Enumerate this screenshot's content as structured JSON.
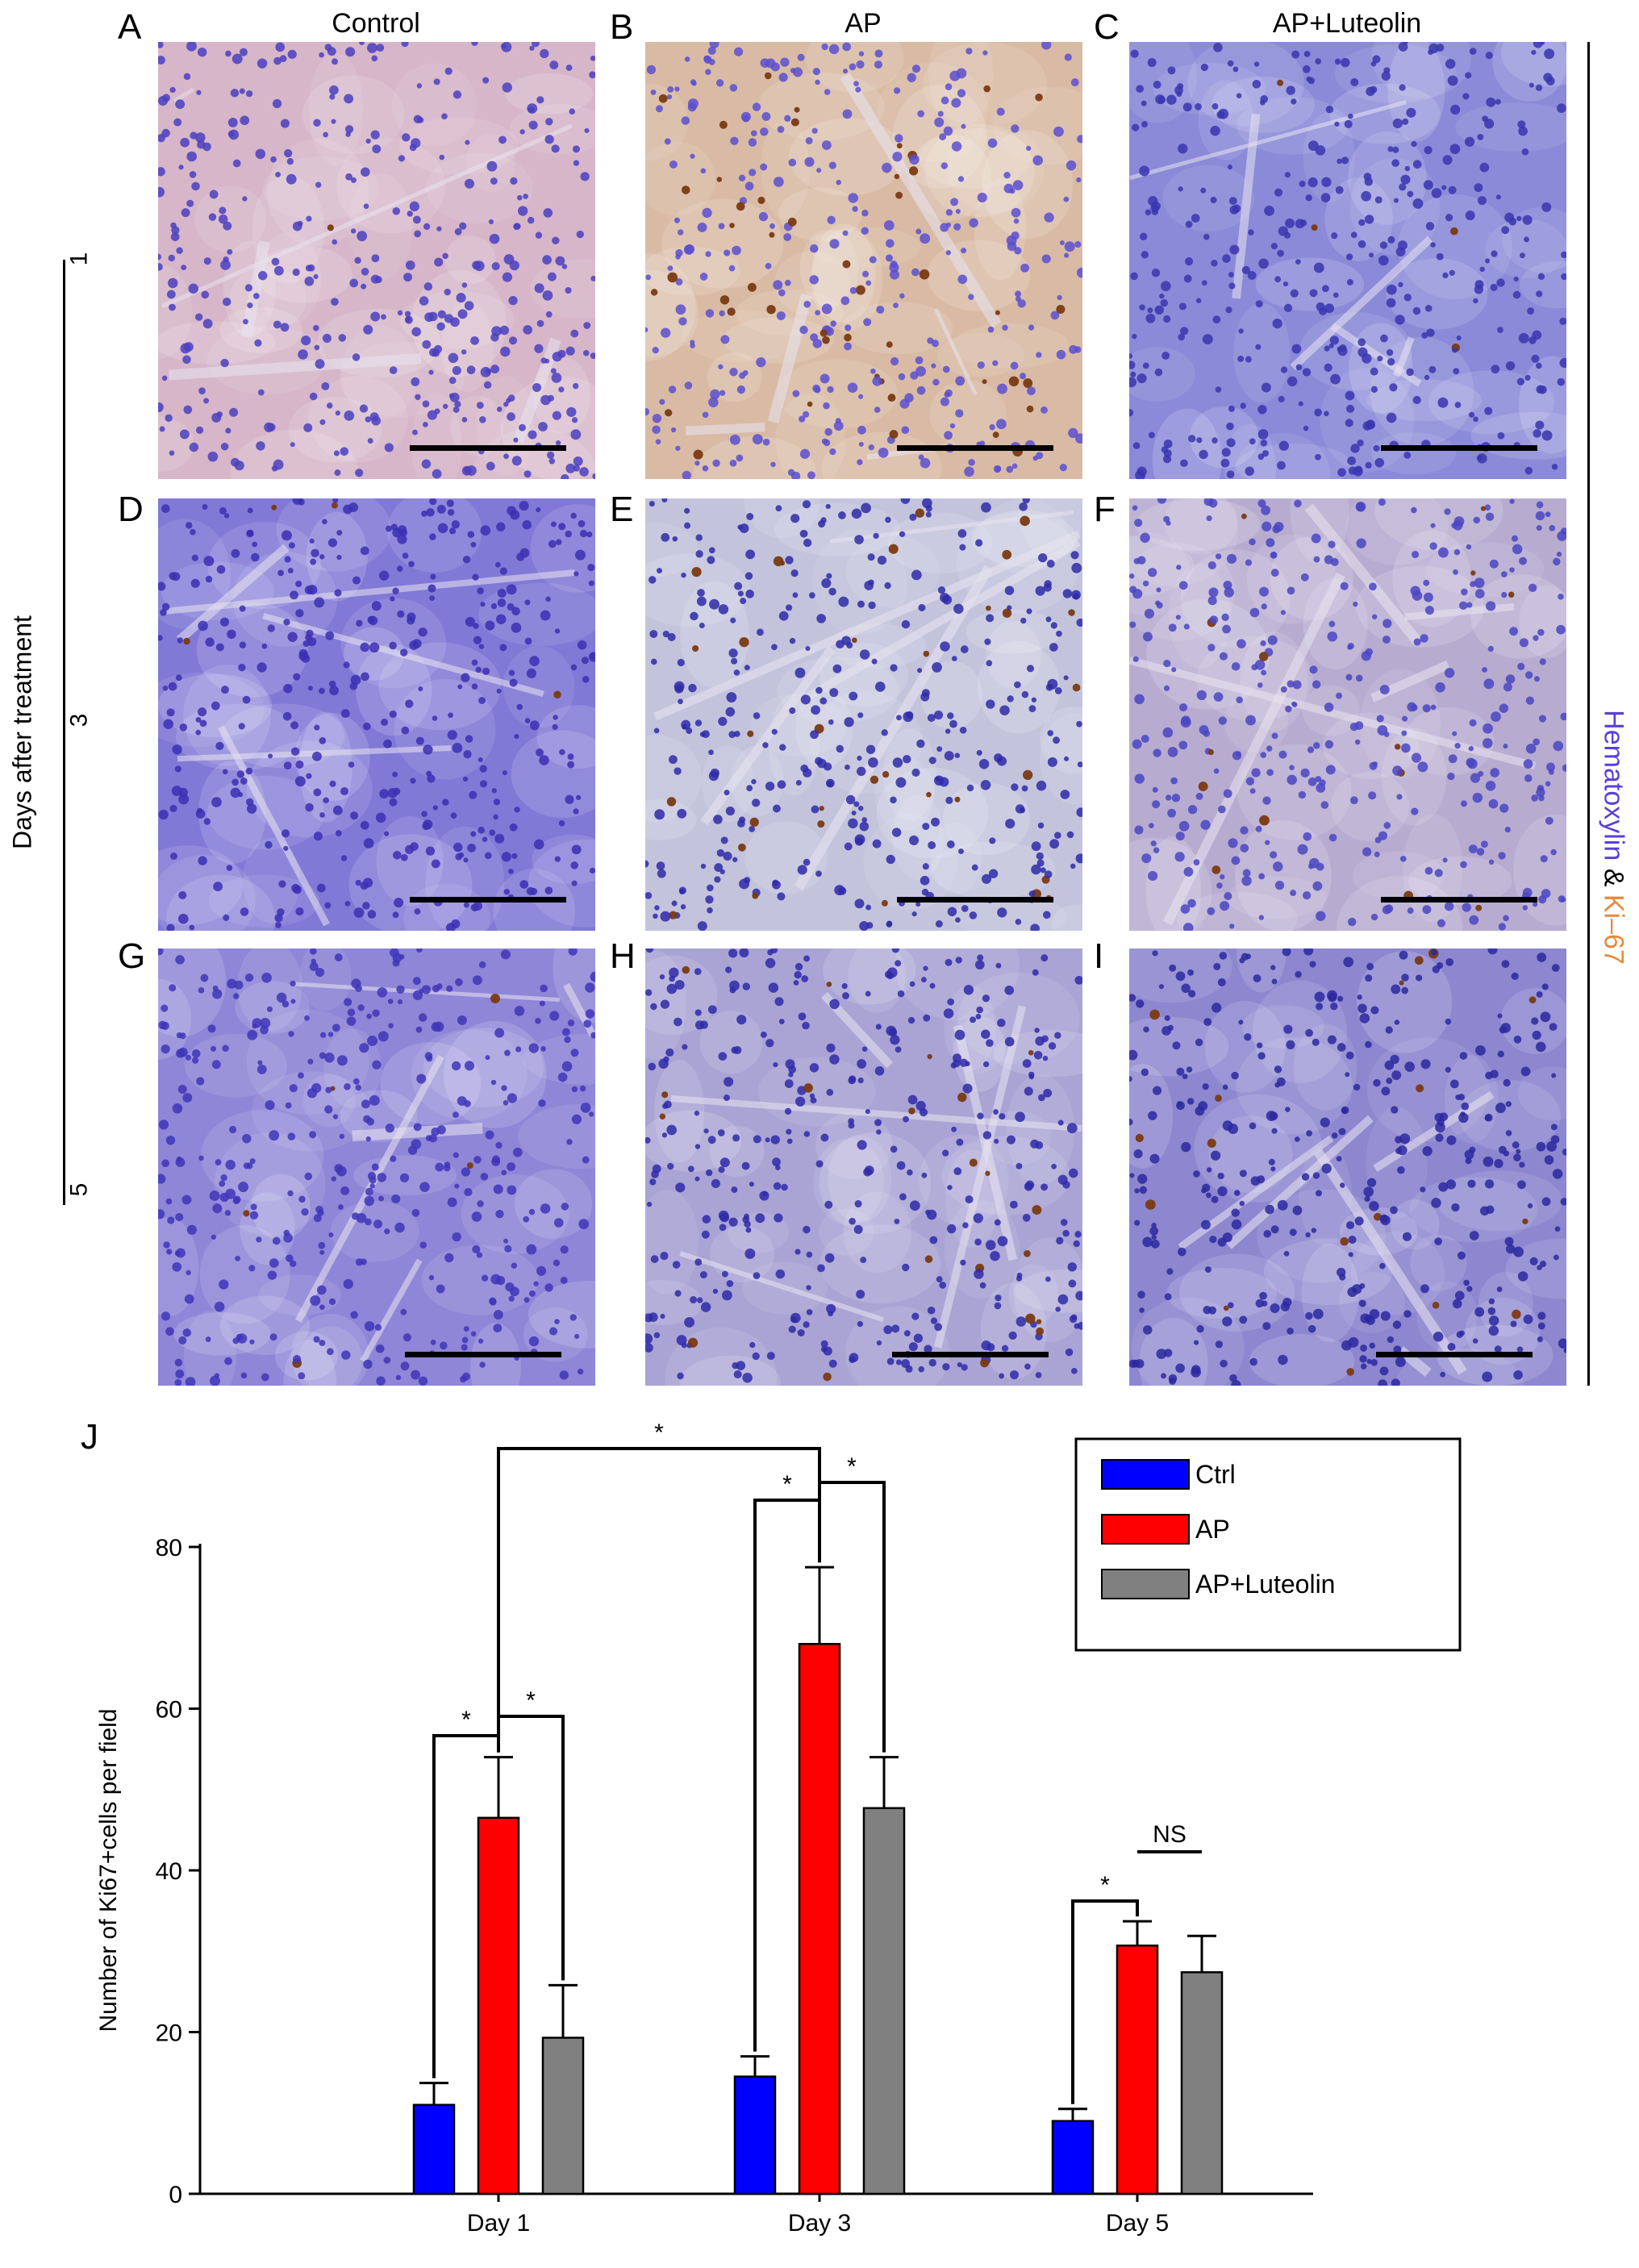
{
  "panels": {
    "column_titles": [
      "Control",
      "AP",
      "AP+Luteolin"
    ],
    "row_axis_label": "Days after treatment",
    "row_ticks": [
      "1",
      "3",
      "5"
    ],
    "labels": [
      "A",
      "B",
      "C",
      "D",
      "E",
      "F",
      "G",
      "H",
      "I",
      "J"
    ],
    "stain_legend": {
      "part1": "Hematoxylin",
      "amp": "&",
      "part2": "Ki–67"
    },
    "colors": {
      "hematoxylin": "#5b3fd6",
      "ki67": "#e58a3a"
    }
  },
  "chart_data": {
    "type": "bar",
    "categories": [
      "Day 1",
      "Day 3",
      "Day 5"
    ],
    "series": [
      {
        "name": "Ctrl",
        "color": "#0000ff",
        "values": [
          11,
          14.5,
          9
        ],
        "errors": [
          2.7,
          2.5,
          1.5
        ]
      },
      {
        "name": "AP",
        "color": "#ff0000",
        "values": [
          46.5,
          68,
          30.7
        ],
        "errors": [
          7.5,
          9.5,
          3
        ]
      },
      {
        "name": "AP+Luteolin",
        "color": "#808080",
        "values": [
          19.3,
          47.7,
          27.4
        ],
        "errors": [
          6.5,
          6.3,
          4.5
        ]
      }
    ],
    "ylabel": "Number of Ki67+cells per field",
    "ylim": [
      0,
      80
    ],
    "yticks": [
      0,
      20,
      40,
      60,
      80
    ],
    "legend": "top-right",
    "significance": [
      {
        "from": "Day 1 Ctrl",
        "to": "Day 1 AP",
        "label": "*"
      },
      {
        "from": "Day 1 AP",
        "to": "Day 1 AP+Luteolin",
        "label": "*"
      },
      {
        "from": "Day 3 Ctrl",
        "to": "Day 3 AP",
        "label": "*"
      },
      {
        "from": "Day 3 AP",
        "to": "Day 3 AP+Luteolin",
        "label": "*"
      },
      {
        "from": "Day 1 AP",
        "to": "Day 3 AP",
        "label": "*"
      },
      {
        "from": "Day 5 Ctrl",
        "to": "Day 5 AP",
        "label": "*"
      },
      {
        "from": "Day 5 AP",
        "to": "Day 5 AP+Luteolin",
        "label": "NS"
      }
    ]
  }
}
